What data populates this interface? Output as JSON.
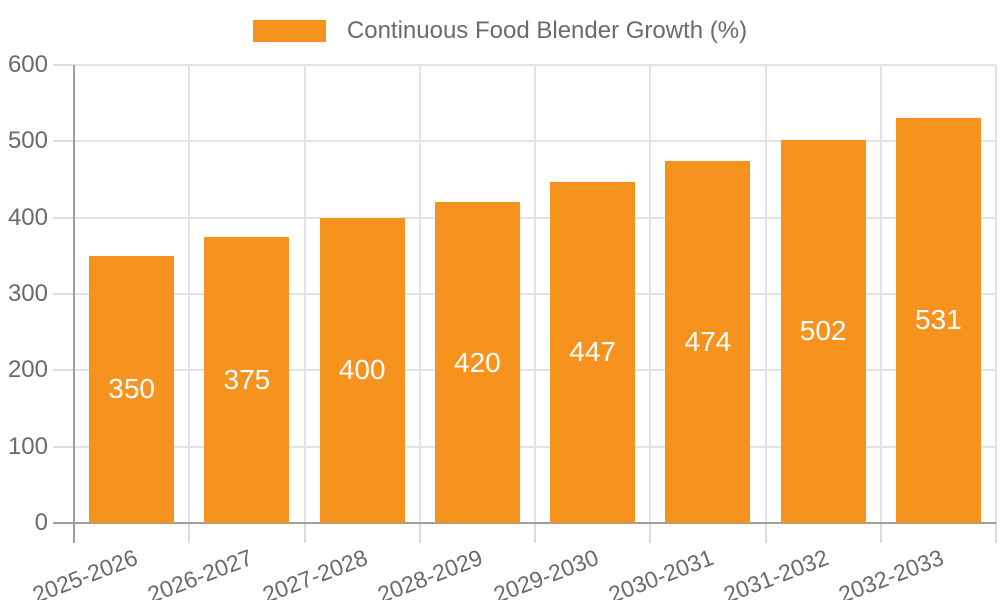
{
  "chart_data": {
    "type": "bar",
    "title": "Continuous Food Blender Growth (%)",
    "legend": {
      "position": "top",
      "label": "Continuous Food Blender Growth (%)"
    },
    "categories": [
      "2025-2026",
      "2026-2027",
      "2027-2028",
      "2028-2029",
      "2029-2030",
      "2030-2031",
      "2031-2032",
      "2032-2033"
    ],
    "values": [
      350,
      375,
      400,
      420,
      447,
      474,
      502,
      531
    ],
    "xlabel": "",
    "ylabel": "",
    "ylim": [
      0,
      600
    ],
    "yticks": [
      0,
      100,
      200,
      300,
      400,
      500,
      600
    ],
    "grid": true,
    "value_labels_position": "inside-center",
    "colors": {
      "bar": "#F6921E",
      "value_label": "#FFFFFF",
      "axis_line": "#9E9E9E",
      "gridline": "#E3E3E3",
      "tick_mark": "#DCDCDC",
      "text": "#6A6A6A",
      "background": "#FFFFFF"
    }
  }
}
